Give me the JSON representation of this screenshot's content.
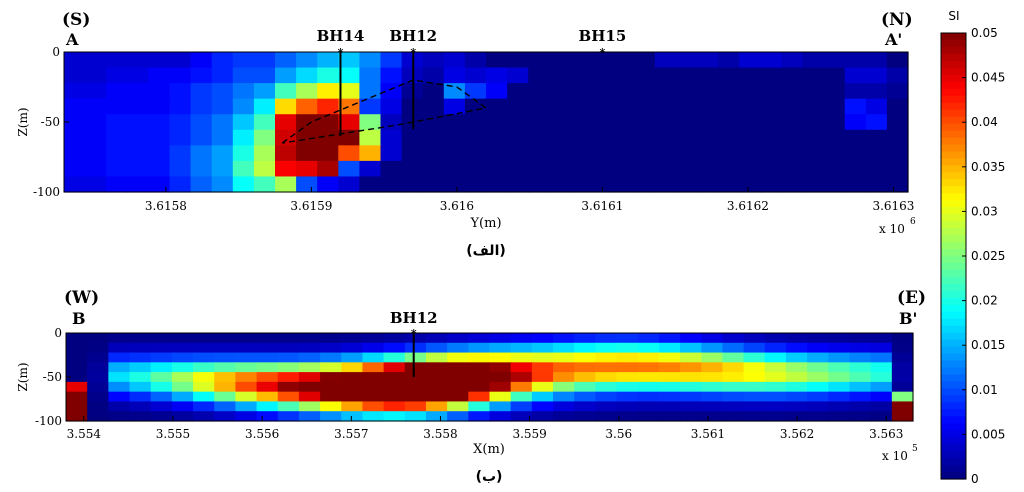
{
  "chart_data": [
    {
      "type": "heatmap",
      "section_label": "(الف)",
      "corner_left": "(S)",
      "corner_right": "(N)",
      "end_left": "A",
      "end_right": "A'",
      "xlabel": "Y(m)",
      "ylabel": "Z(m)",
      "x_exponent": "x 10",
      "x_exponent_power": "6",
      "xlim": [
        3.61573,
        3.61631
      ],
      "ylim": [
        -100,
        0
      ],
      "x_ticks": [
        "3.6158",
        "3.6159",
        "3.616",
        "3.6161",
        "3.6162",
        "3.6163"
      ],
      "x_tick_values": [
        3.6158,
        3.6159,
        3.616,
        3.6161,
        3.6162,
        3.6163
      ],
      "y_ticks": [
        "0",
        "-50",
        "-100"
      ],
      "y_tick_values": [
        0,
        -50,
        -100
      ],
      "boreholes": [
        {
          "name": "BH14",
          "x": 3.61592,
          "depth": -60
        },
        {
          "name": "BH12",
          "x": 3.61597,
          "depth": -55
        },
        {
          "name": "BH15",
          "x": 3.6161,
          "depth": 0
        }
      ],
      "outline": [
        [
          3.61588,
          -65
        ],
        [
          3.6159,
          -50
        ],
        [
          3.61597,
          -20
        ],
        [
          3.616,
          -25
        ],
        [
          3.61602,
          -40
        ],
        [
          3.61596,
          -52
        ],
        [
          3.61588,
          -65
        ]
      ],
      "z_rows": [
        [
          0.004,
          0.004,
          0.004,
          0.004,
          0.004,
          0.004,
          0.006,
          0.008,
          0.009,
          0.009,
          0.011,
          0.013,
          0.015,
          0.016,
          0.013,
          0.009,
          0.004,
          0.003,
          0.004,
          0.002,
          0,
          0,
          0,
          0,
          0,
          0,
          0,
          0,
          0.003,
          0.003,
          0.003,
          0.002,
          0.004,
          0.004,
          0.003,
          0.002,
          0.002,
          0.002,
          0.002,
          0
        ],
        [
          0.004,
          0.004,
          0.005,
          0.005,
          0.006,
          0.006,
          0.007,
          0.008,
          0.01,
          0.01,
          0.014,
          0.017,
          0.02,
          0.019,
          0.012,
          0.007,
          0.003,
          0.002,
          0.005,
          0.004,
          0.005,
          0.004,
          0,
          0,
          0,
          0,
          0,
          0,
          0,
          0,
          0,
          0,
          0,
          0,
          0,
          0,
          0,
          0.004,
          0.004,
          0.002
        ],
        [
          0.005,
          0.005,
          0.006,
          0.006,
          0.006,
          0.007,
          0.009,
          0.01,
          0.012,
          0.014,
          0.022,
          0.027,
          0.032,
          0.03,
          0.012,
          0.006,
          0.001,
          0,
          0.013,
          0.009,
          0.006,
          0,
          0,
          0,
          0,
          0,
          0,
          0,
          0,
          0,
          0,
          0,
          0,
          0,
          0,
          0,
          0,
          0.002,
          0.002,
          0.001
        ],
        [
          0.006,
          0.006,
          0.006,
          0.006,
          0.006,
          0.007,
          0.009,
          0.01,
          0.013,
          0.018,
          0.033,
          0.039,
          0.042,
          0.038,
          0.009,
          0.005,
          0,
          0,
          0.005,
          0,
          0,
          0,
          0,
          0,
          0,
          0,
          0,
          0,
          0,
          0,
          0,
          0,
          0,
          0,
          0,
          0,
          0,
          0.007,
          0.005,
          0
        ],
        [
          0.006,
          0.006,
          0.007,
          0.007,
          0.007,
          0.008,
          0.01,
          0.012,
          0.016,
          0.022,
          0.045,
          0.05,
          0.05,
          0.045,
          0.025,
          0.003,
          0,
          0,
          0,
          0,
          0,
          0,
          0,
          0,
          0,
          0,
          0,
          0,
          0,
          0,
          0,
          0,
          0,
          0,
          0,
          0,
          0,
          0.006,
          0.007,
          0
        ],
        [
          0.006,
          0.006,
          0.007,
          0.007,
          0.007,
          0.008,
          0.01,
          0.012,
          0.018,
          0.025,
          0.046,
          0.05,
          0.05,
          0.05,
          0.028,
          0.004,
          0,
          0,
          0,
          0,
          0,
          0,
          0,
          0,
          0,
          0,
          0,
          0,
          0,
          0,
          0,
          0,
          0,
          0,
          0,
          0,
          0,
          0,
          0,
          0
        ],
        [
          0.006,
          0.006,
          0.007,
          0.007,
          0.007,
          0.009,
          0.012,
          0.014,
          0.02,
          0.027,
          0.047,
          0.05,
          0.05,
          0.04,
          0.035,
          0.004,
          0,
          0,
          0,
          0,
          0,
          0,
          0,
          0,
          0,
          0,
          0,
          0,
          0,
          0,
          0,
          0,
          0,
          0,
          0,
          0,
          0,
          0,
          0,
          0
        ],
        [
          0.006,
          0.006,
          0.007,
          0.007,
          0.007,
          0.009,
          0.012,
          0.014,
          0.022,
          0.028,
          0.044,
          0.045,
          0.048,
          0.01,
          0.004,
          0,
          0,
          0,
          0,
          0,
          0,
          0,
          0,
          0,
          0,
          0,
          0,
          0,
          0,
          0,
          0,
          0,
          0,
          0,
          0,
          0,
          0,
          0,
          0,
          0
        ],
        [
          0.005,
          0.005,
          0.006,
          0.006,
          0.006,
          0.008,
          0.011,
          0.013,
          0.019,
          0.022,
          0.027,
          0.01,
          0.006,
          0.004,
          0,
          0,
          0,
          0,
          0,
          0,
          0,
          0,
          0,
          0,
          0,
          0,
          0,
          0,
          0,
          0,
          0,
          0,
          0,
          0,
          0,
          0,
          0,
          0,
          0,
          0
        ]
      ]
    },
    {
      "type": "heatmap",
      "section_label": "(ب)",
      "corner_left": "(W)",
      "corner_right": "(E)",
      "end_left": "B",
      "end_right": "B'",
      "xlabel": "X(m)",
      "ylabel": "Z(m)",
      "x_exponent": "x 10",
      "x_exponent_power": "5",
      "xlim": [
        3.5538,
        3.5633
      ],
      "ylim": [
        -100,
        0
      ],
      "x_ticks": [
        "3.554",
        "3.555",
        "3.556",
        "3.557",
        "3.558",
        "3.559",
        "3.56",
        "3.561",
        "3.562",
        "3.563"
      ],
      "x_tick_values": [
        3.554,
        3.555,
        3.556,
        3.557,
        3.558,
        3.559,
        3.56,
        3.561,
        3.562,
        3.563
      ],
      "y_ticks": [
        "0",
        "-50",
        "-100"
      ],
      "y_tick_values": [
        0,
        -50,
        -100
      ],
      "boreholes": [
        {
          "name": "BH12",
          "x": 3.5577,
          "depth": -50
        }
      ]
    }
  ],
  "colorbar": {
    "title": "SI",
    "min": 0,
    "max": 0.05,
    "ticks": [
      "0.05",
      "0.045",
      "0.04",
      "0.035",
      "0.03",
      "0.025",
      "0.02",
      "0.015",
      "0.01",
      "0.005",
      "0"
    ],
    "tick_values": [
      0.05,
      0.045,
      0.04,
      0.035,
      0.03,
      0.025,
      0.02,
      0.015,
      0.01,
      0.005,
      0
    ],
    "colormap": "jet"
  }
}
